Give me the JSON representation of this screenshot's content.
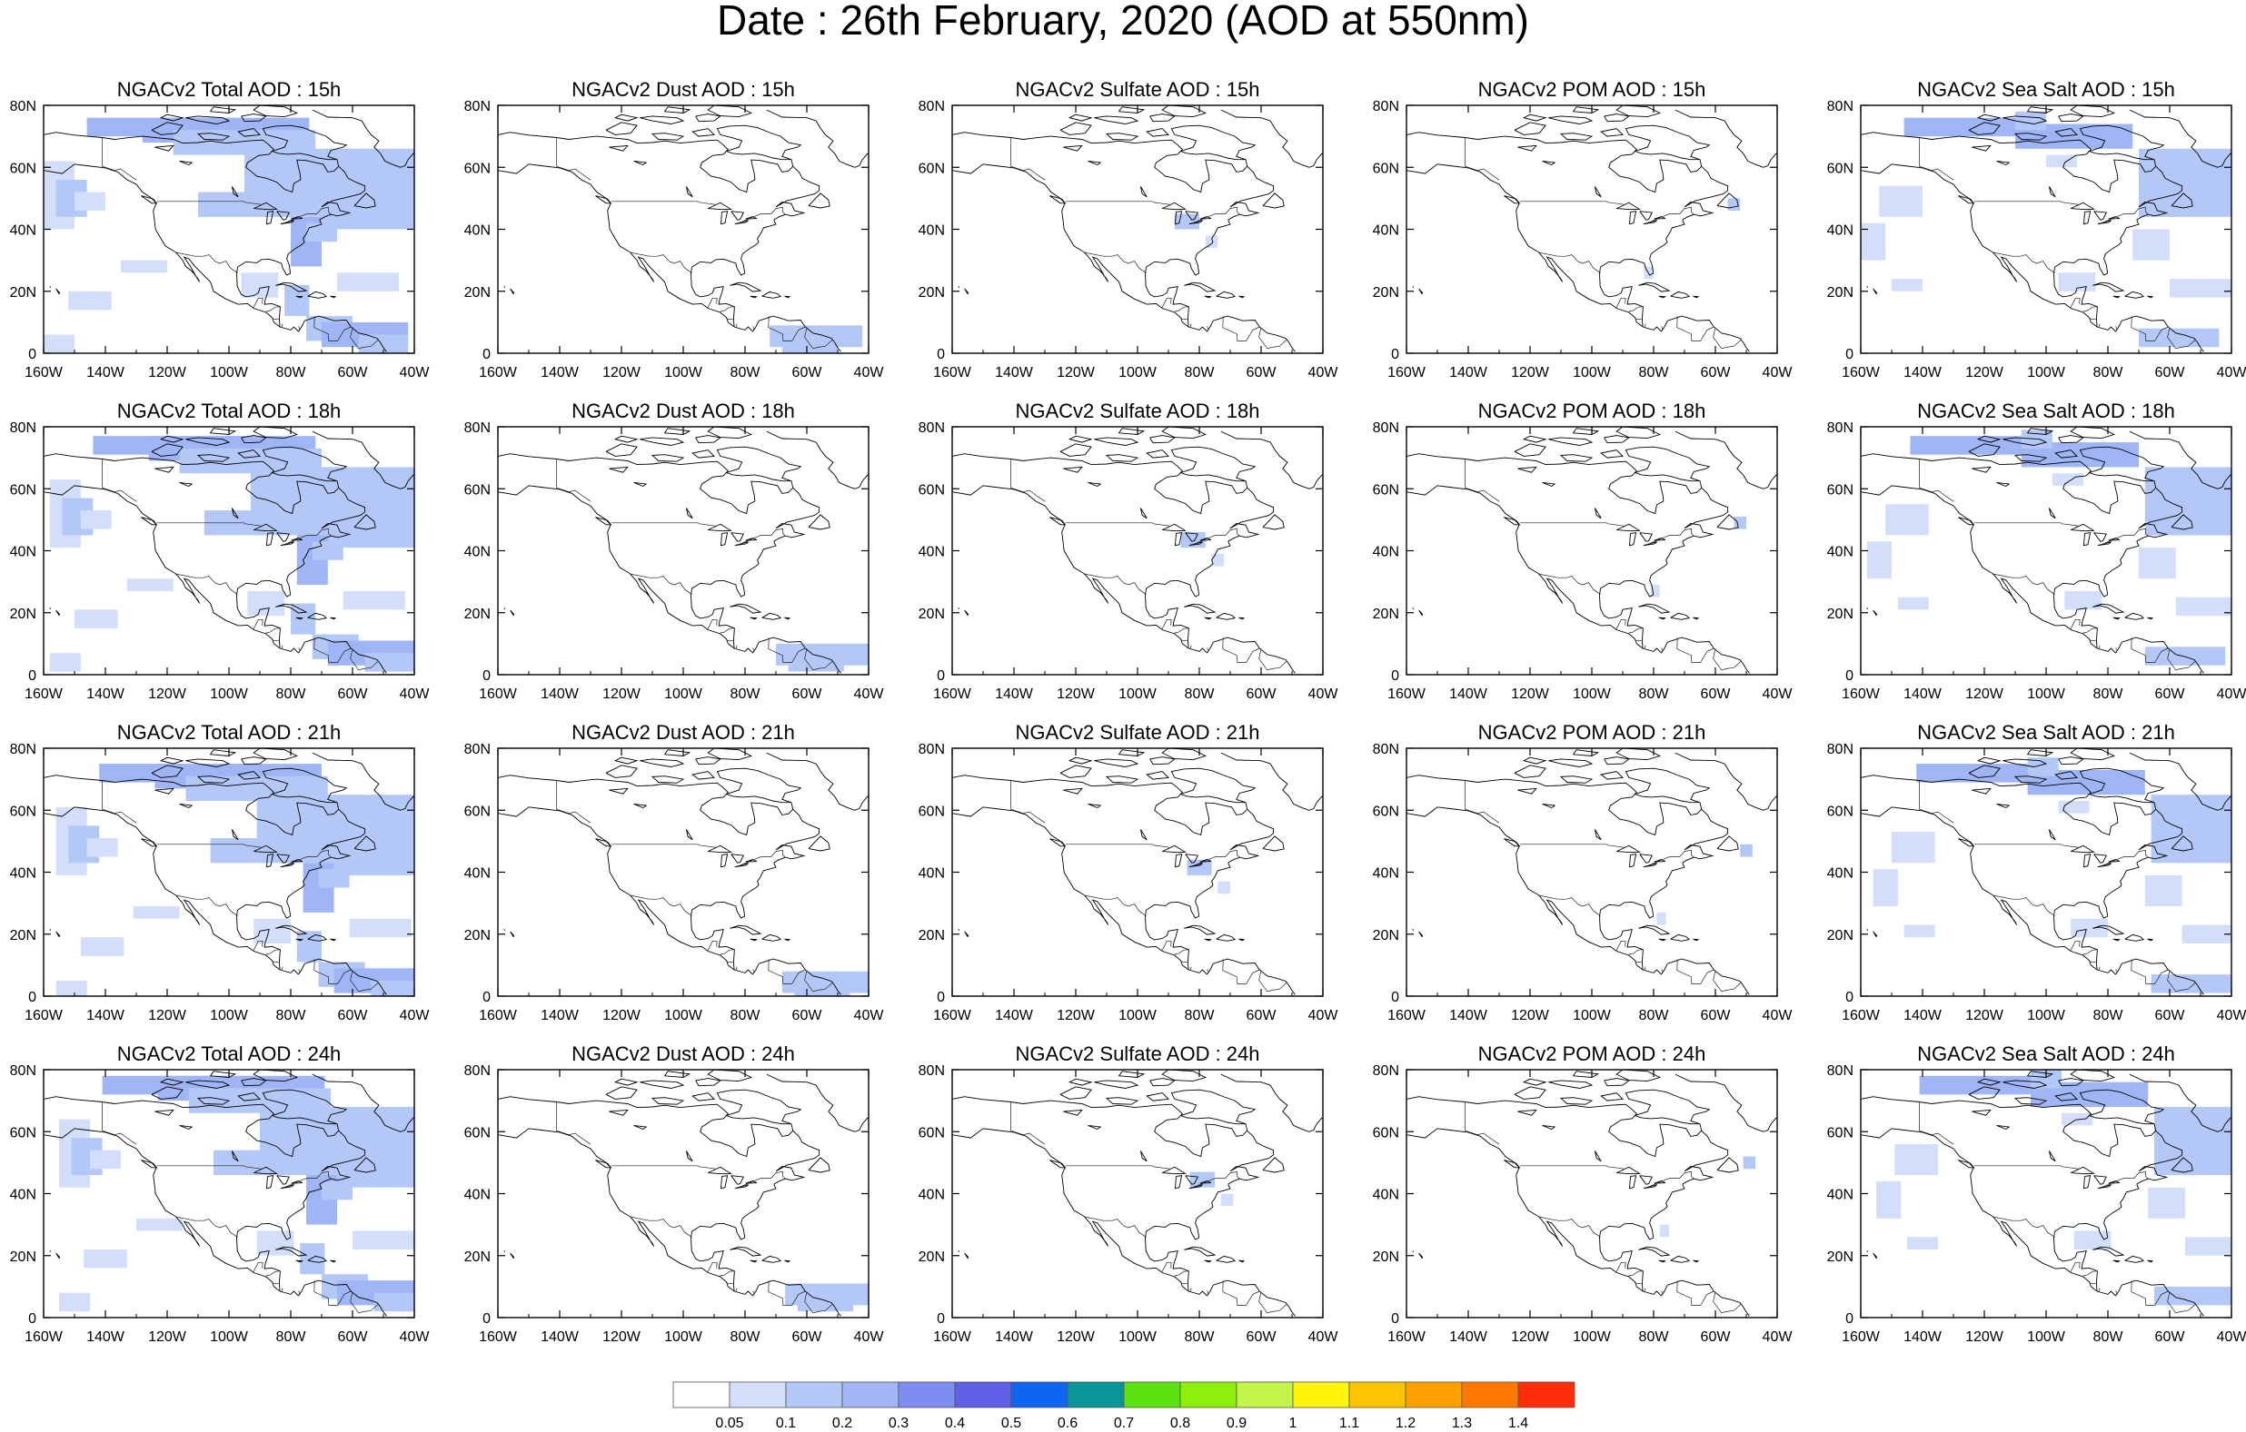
{
  "title": "Date : 26th February, 2020 (AOD at 550nm)",
  "map_extent": {
    "lon": [
      -160,
      -40
    ],
    "lat": [
      0,
      80
    ]
  },
  "x_ticks": [
    "160W",
    "140W",
    "120W",
    "100W",
    "80W",
    "60W",
    "40W"
  ],
  "y_ticks": [
    "0",
    "20N",
    "40N",
    "60N",
    "80N"
  ],
  "columns": [
    "Total",
    "Dust",
    "Sulfate",
    "POM",
    "Sea Salt"
  ],
  "hours": [
    "15h",
    "18h",
    "21h",
    "24h"
  ],
  "panel_titles": [
    [
      "NGACv2 Total AOD : 15h",
      "NGACv2 Dust AOD : 15h",
      "NGACv2 Sulfate AOD : 15h",
      "NGACv2 POM AOD : 15h",
      "NGACv2 Sea Salt AOD : 15h"
    ],
    [
      "NGACv2 Total AOD : 18h",
      "NGACv2 Dust AOD : 18h",
      "NGACv2 Sulfate AOD : 18h",
      "NGACv2 POM AOD : 18h",
      "NGACv2 Sea Salt AOD : 18h"
    ],
    [
      "NGACv2 Total AOD : 21h",
      "NGACv2 Dust AOD : 21h",
      "NGACv2 Sulfate AOD : 21h",
      "NGACv2 POM AOD : 21h",
      "NGACv2 Sea Salt AOD : 21h"
    ],
    [
      "NGACv2 Total AOD : 24h",
      "NGACv2 Dust AOD : 24h",
      "NGACv2 Sulfate AOD : 24h",
      "NGACv2 POM AOD : 24h",
      "NGACv2 Sea Salt  AOD : 24h"
    ]
  ],
  "colorbar": {
    "labels": [
      "0.05",
      "0.1",
      "0.2",
      "0.3",
      "0.4",
      "0.5",
      "0.6",
      "0.7",
      "0.8",
      "0.9",
      "1",
      "1.1",
      "1.2",
      "1.3",
      "1.4"
    ],
    "colors": [
      "#ffffff",
      "#d3defb",
      "#b4c8f8",
      "#9fb5f5",
      "#7e8ef0",
      "#5f5fe8",
      "#0f64f0",
      "#0a9696",
      "#5ae10f",
      "#8cf00a",
      "#c3f54b",
      "#fff50a",
      "#ffc300",
      "#ffa000",
      "#ff7800",
      "#ff2d0a"
    ]
  },
  "aod_regions": {
    "Total": [
      {
        "name": "arctic archipelago",
        "level": 2
      },
      {
        "name": "hudson bay / labrador",
        "level": 1
      },
      {
        "name": "north pacific",
        "level": 1
      },
      {
        "name": "north atlantic",
        "level": 1
      },
      {
        "name": "caribbean / south america",
        "level": 1
      }
    ],
    "Dust": [
      {
        "name": "tropical atlantic",
        "level": 1
      }
    ],
    "Sulfate": [
      {
        "name": "great lakes / east coast",
        "level": 1
      }
    ],
    "POM": [
      {
        "name": "newfoundland / florida",
        "level": 1
      }
    ],
    "Sea Salt": [
      {
        "name": "arctic archipelago",
        "level": 2
      },
      {
        "name": "north atlantic",
        "level": 1
      },
      {
        "name": "north pacific",
        "level": 1
      },
      {
        "name": "tropical atlantic",
        "level": 1
      }
    ]
  }
}
